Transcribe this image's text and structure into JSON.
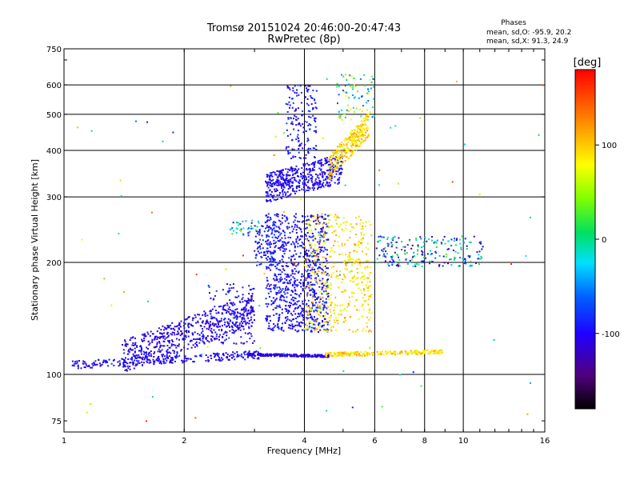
{
  "header": {
    "title_line1": "Tromsø 20151024 20:46:00-20:47:43",
    "title_line2": "RwPretec (8p)"
  },
  "stats": {
    "heading": "Phases",
    "line_o": "mean, sd,O: -95.9, 20.2",
    "line_x": "mean, sd,X:  91.3, 24.9"
  },
  "colorbar": {
    "unit_label": "[deg]",
    "tick_labels": [
      "100",
      "0",
      "-100"
    ],
    "tick_values": [
      100,
      0,
      -100
    ],
    "range": [
      -180,
      180
    ],
    "colormap": "rainbow (black-purple-blue-cyan-green-yellow-red)"
  },
  "chart_data": {
    "type": "scatter",
    "title": "Tromsø 20151024 20:46:00-20:47:43",
    "subtitle": "RwPretec (8p)",
    "xlabel": "Frequency [MHz]",
    "ylabel": "Stationary phase Virtual Height [km]",
    "xscale": "log",
    "yscale": "log",
    "xlim": [
      1,
      16
    ],
    "ylim": [
      70,
      750
    ],
    "xticks": [
      1,
      2,
      4,
      6,
      8,
      10,
      16
    ],
    "xtick_labels": [
      "1",
      "2",
      "4",
      "6",
      "8",
      "10",
      "16"
    ],
    "yticks": [
      75,
      100,
      200,
      300,
      400,
      500,
      600,
      750
    ],
    "ytick_labels": [
      "75",
      "100",
      "200",
      "300",
      "400",
      "500",
      "600",
      "750"
    ],
    "grid_x": [
      2,
      4,
      6,
      8,
      10
    ],
    "grid_y": [
      100,
      200,
      300,
      400,
      500,
      600
    ],
    "color_by": "phase [deg]",
    "trace_structures": [
      {
        "name": "E-layer baseline",
        "freq_range": [
          1.05,
          3.1
        ],
        "height_range": [
          105,
          118
        ],
        "phase_approx": -100
      },
      {
        "name": "E-layer rising trace",
        "freq_range": [
          1.4,
          3.0
        ],
        "height_range": [
          110,
          175
        ],
        "phase_approx": -105
      },
      {
        "name": "Flat trace near 113 km",
        "freq_range": [
          2.9,
          4.5
        ],
        "height_range": [
          111,
          114
        ],
        "phase_approx": -110
      },
      {
        "name": "Flat trace near 113 km (X)",
        "freq_range": [
          4.5,
          8.9
        ],
        "height_range": [
          111,
          116
        ],
        "phase_approx": 95
      },
      {
        "name": "F-region cluster (O)",
        "freq_range": [
          3.2,
          4.6
        ],
        "height_range": [
          130,
          270
        ],
        "phase_approx": -95
      },
      {
        "name": "F-region cluster (X)",
        "freq_range": [
          4.0,
          5.8
        ],
        "height_range": [
          130,
          270
        ],
        "phase_approx": 90
      },
      {
        "name": "Upper trace (O)",
        "freq_range": [
          3.2,
          5.2
        ],
        "height_range": [
          310,
          400
        ],
        "phase_approx": -100
      },
      {
        "name": "Upper trace (X)",
        "freq_range": [
          4.6,
          5.8
        ],
        "height_range": [
          360,
          470
        ],
        "phase_approx": 95
      },
      {
        "name": "Spread near 200-230 km",
        "freq_range": [
          6.0,
          11.2
        ],
        "height_range": [
          195,
          235
        ],
        "phase_approx": -60
      }
    ]
  }
}
